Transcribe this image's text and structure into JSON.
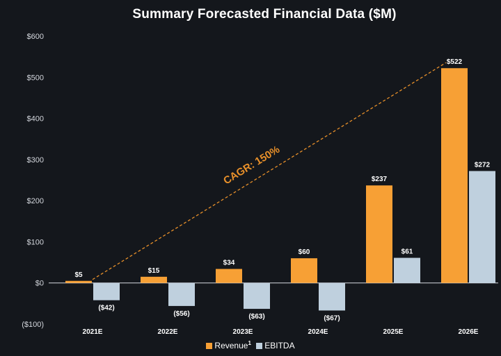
{
  "chart_data": {
    "type": "bar",
    "title": "Summary Forecasted Financial Data ($M)",
    "categories": [
      "2021E",
      "2022E",
      "2023E",
      "2024E",
      "2025E",
      "2026E"
    ],
    "series": [
      {
        "name": "Revenue",
        "superscript": "1",
        "color": "#f7a035",
        "values": [
          5,
          15,
          34,
          60,
          237,
          522
        ],
        "labels": [
          "$5",
          "$15",
          "$34",
          "$60",
          "$237",
          "$522"
        ]
      },
      {
        "name": "EBITDA",
        "color": "#bfd0de",
        "values": [
          -42,
          -56,
          -63,
          -67,
          61,
          272
        ],
        "labels": [
          "($42)",
          "($56)",
          "($63)",
          "($67)",
          "$61",
          "$272"
        ]
      }
    ],
    "yticks": [
      -100,
      0,
      100,
      200,
      300,
      400,
      500,
      600
    ],
    "ytick_labels": [
      "($100)",
      "$0",
      "$100",
      "$200",
      "$300",
      "$400",
      "$500",
      "$600"
    ],
    "ylim": [
      -100,
      600
    ],
    "annotation": {
      "text": "CAGR: 150%",
      "from": {
        "category": "2021E",
        "value": 5
      },
      "to": {
        "category": "2026E",
        "value": 522
      },
      "color": "#e8902a"
    },
    "legend_position": "bottom-center",
    "grid": false
  }
}
